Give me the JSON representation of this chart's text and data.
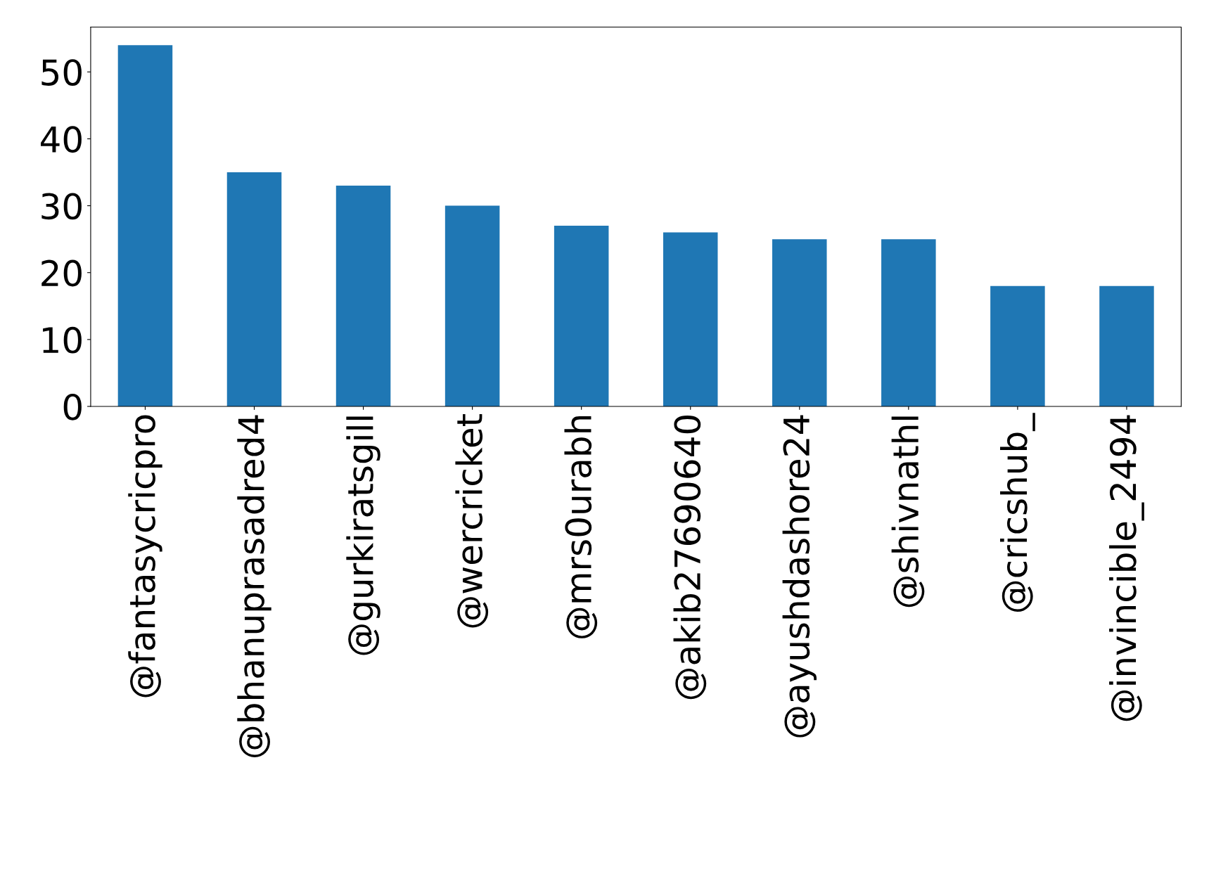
{
  "chart_data": {
    "type": "bar",
    "categories": [
      "@fantasycricpro",
      "@bhanuprasadred4",
      "@gurkiratsgill",
      "@wercricket",
      "@mrs0urabh",
      "@akib27690640",
      "@ayushdashore24",
      "@shivnathl",
      "@cricshub_",
      "@invincible_2494"
    ],
    "values": [
      54,
      35,
      33,
      30,
      27,
      26,
      25,
      25,
      18,
      18
    ],
    "color": "#1f77b4",
    "ylim": [
      0,
      56.7
    ],
    "yticks": [
      0,
      10,
      20,
      30,
      40,
      50
    ],
    "grid": false,
    "legend": false
  }
}
